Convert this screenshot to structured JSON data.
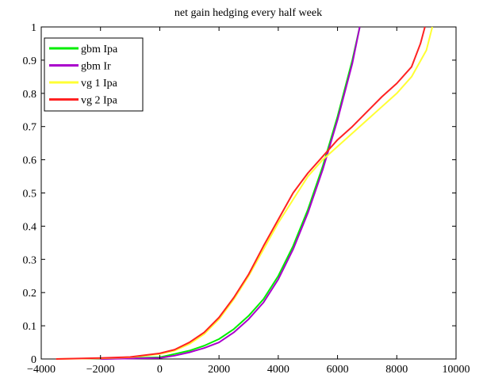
{
  "chart_data": {
    "type": "line",
    "title": "net gain hedging every half week",
    "xlabel": "",
    "ylabel": "",
    "xlim": [
      -4000,
      10000
    ],
    "ylim": [
      0,
      1
    ],
    "xticks": [
      -4000,
      -2000,
      0,
      2000,
      4000,
      6000,
      8000,
      10000
    ],
    "yticks": [
      0,
      0.1,
      0.2,
      0.3,
      0.4,
      0.5,
      0.6,
      0.7,
      0.8,
      0.9,
      1
    ],
    "xtick_labels": [
      "−4000",
      "−2000",
      "0",
      "2000",
      "4000",
      "6000",
      "8000",
      "10000"
    ],
    "ytick_labels": [
      "0",
      "0.1",
      "0.2",
      "0.3",
      "0.4",
      "0.5",
      "0.6",
      "0.7",
      "0.8",
      "0.9",
      "1"
    ],
    "grid": false,
    "legend_position": "top-left",
    "series": [
      {
        "name": "gbm Ipa",
        "color": "#00ee00",
        "points": [
          [
            -2000,
            0
          ],
          [
            0,
            0.005
          ],
          [
            500,
            0.015
          ],
          [
            1000,
            0.025
          ],
          [
            1500,
            0.04
          ],
          [
            2000,
            0.06
          ],
          [
            2500,
            0.09
          ],
          [
            3000,
            0.13
          ],
          [
            3500,
            0.18
          ],
          [
            4000,
            0.25
          ],
          [
            4500,
            0.34
          ],
          [
            5000,
            0.45
          ],
          [
            5500,
            0.58
          ],
          [
            6000,
            0.73
          ],
          [
            6500,
            0.9
          ],
          [
            6750,
            1.0
          ]
        ]
      },
      {
        "name": "gbm Ir",
        "color": "#aa00cc",
        "points": [
          [
            -2000,
            0
          ],
          [
            0,
            0.003
          ],
          [
            500,
            0.01
          ],
          [
            1000,
            0.02
          ],
          [
            1500,
            0.033
          ],
          [
            2000,
            0.05
          ],
          [
            2500,
            0.08
          ],
          [
            3000,
            0.12
          ],
          [
            3500,
            0.17
          ],
          [
            4000,
            0.24
          ],
          [
            4500,
            0.33
          ],
          [
            5000,
            0.44
          ],
          [
            5500,
            0.57
          ],
          [
            6000,
            0.72
          ],
          [
            6500,
            0.89
          ],
          [
            6750,
            1.0
          ]
        ]
      },
      {
        "name": "vg 1 Ipa",
        "color": "#ffff33",
        "points": [
          [
            -3500,
            0
          ],
          [
            -2000,
            0.002
          ],
          [
            -1000,
            0.005
          ],
          [
            0,
            0.015
          ],
          [
            500,
            0.025
          ],
          [
            1000,
            0.045
          ],
          [
            1500,
            0.075
          ],
          [
            2000,
            0.12
          ],
          [
            2500,
            0.18
          ],
          [
            3000,
            0.25
          ],
          [
            3500,
            0.33
          ],
          [
            4000,
            0.41
          ],
          [
            4500,
            0.48
          ],
          [
            5000,
            0.55
          ],
          [
            5500,
            0.6
          ],
          [
            6000,
            0.64
          ],
          [
            6500,
            0.68
          ],
          [
            7000,
            0.72
          ],
          [
            7500,
            0.76
          ],
          [
            8000,
            0.8
          ],
          [
            8500,
            0.85
          ],
          [
            9000,
            0.93
          ],
          [
            9200,
            1.0
          ]
        ]
      },
      {
        "name": "vg 2 Ipa",
        "color": "#ff2222",
        "points": [
          [
            -3500,
            0
          ],
          [
            -2000,
            0.003
          ],
          [
            -1000,
            0.006
          ],
          [
            0,
            0.017
          ],
          [
            500,
            0.028
          ],
          [
            1000,
            0.05
          ],
          [
            1500,
            0.08
          ],
          [
            2000,
            0.125
          ],
          [
            2500,
            0.185
          ],
          [
            3000,
            0.255
          ],
          [
            3500,
            0.34
          ],
          [
            4000,
            0.42
          ],
          [
            4500,
            0.5
          ],
          [
            5000,
            0.56
          ],
          [
            5500,
            0.61
          ],
          [
            6000,
            0.66
          ],
          [
            6500,
            0.7
          ],
          [
            7000,
            0.745
          ],
          [
            7500,
            0.79
          ],
          [
            8000,
            0.83
          ],
          [
            8500,
            0.88
          ],
          [
            8800,
            0.95
          ],
          [
            8950,
            1.0
          ]
        ]
      }
    ]
  }
}
